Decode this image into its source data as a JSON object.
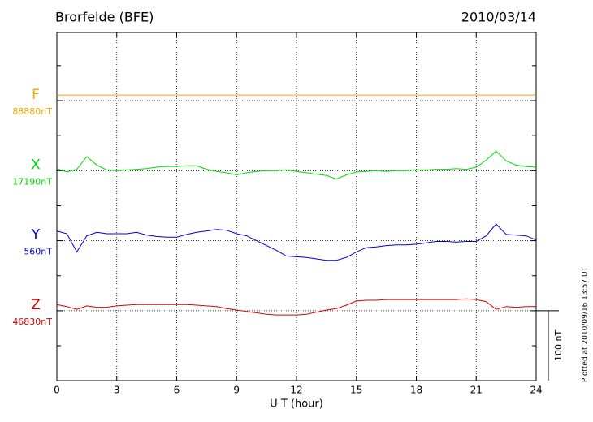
{
  "chart_data": {
    "type": "line",
    "title": "Brorfelde (BFE)",
    "date": "2010/03/14",
    "xlabel": "U T (hour)",
    "xlim": [
      0,
      24
    ],
    "xticks": [
      0,
      3,
      6,
      9,
      12,
      15,
      18,
      21,
      24
    ],
    "grid": true,
    "x": [
      0,
      0.5,
      1,
      1.5,
      2,
      2.5,
      3,
      3.5,
      4,
      4.5,
      5,
      5.5,
      6,
      6.5,
      7,
      7.5,
      8,
      8.5,
      9,
      9.5,
      10,
      10.5,
      11,
      11.5,
      12,
      12.5,
      13,
      13.5,
      14,
      14.5,
      15,
      15.5,
      16,
      16.5,
      17,
      17.5,
      18,
      18.5,
      19,
      19.5,
      20,
      20.5,
      21,
      21.5,
      22,
      22.5,
      23,
      23.5,
      24
    ],
    "series": [
      {
        "name": "F",
        "color": "#f0a800",
        "baseline_label": "88880nT",
        "values": [
          8,
          8,
          8,
          8,
          8,
          8,
          8,
          8,
          8,
          8,
          8,
          8,
          8,
          8,
          8,
          8,
          8,
          8,
          8,
          8,
          8,
          8,
          8,
          8,
          8,
          8,
          8,
          8,
          8,
          8,
          8,
          8,
          8,
          8,
          8,
          8,
          8,
          8,
          8,
          8,
          8,
          8,
          8,
          8,
          8,
          8,
          8,
          8,
          8
        ]
      },
      {
        "name": "X",
        "color": "#00dd00",
        "baseline_label": "17190nT",
        "values": [
          3,
          -2,
          2,
          20,
          8,
          1,
          0,
          1,
          2,
          3,
          5,
          6,
          6,
          7,
          7,
          2,
          -1,
          -3,
          -6,
          -3,
          -1,
          0,
          0,
          1,
          -1,
          -3,
          -5,
          -7,
          -12,
          -6,
          -2,
          -1,
          0,
          -1,
          0,
          0,
          1,
          1,
          2,
          2,
          3,
          2,
          5,
          15,
          28,
          14,
          8,
          6,
          5
        ]
      },
      {
        "name": "Y",
        "color": "#0000dd",
        "baseline_label": "560nT",
        "values": [
          14,
          10,
          -16,
          7,
          12,
          10,
          10,
          10,
          12,
          8,
          6,
          5,
          5,
          9,
          12,
          14,
          16,
          15,
          10,
          7,
          0,
          -7,
          -14,
          -22,
          -23,
          -24,
          -26,
          -28,
          -28,
          -24,
          -16,
          -10,
          -9,
          -7,
          -6,
          -6,
          -5,
          -3,
          -1,
          -1,
          -2,
          -1,
          -1,
          7,
          24,
          9,
          8,
          7,
          1
        ]
      },
      {
        "name": "Z",
        "color": "#dd0000",
        "baseline_label": "46830nT",
        "values": [
          9,
          6,
          2,
          7,
          5,
          5,
          7,
          8,
          9,
          9,
          9,
          9,
          9,
          9,
          8,
          7,
          6,
          3,
          1,
          -1,
          -3,
          -5,
          -6,
          -6,
          -6,
          -5,
          -2,
          1,
          3,
          8,
          14,
          15,
          15,
          16,
          16,
          16,
          16,
          16,
          16,
          16,
          16,
          17,
          16,
          13,
          2,
          6,
          5,
          6,
          6
        ]
      }
    ],
    "scale_bar": {
      "value": 100,
      "label": "100 nT"
    },
    "footnote": "Plotted at 2010/09/16 13:57 UT"
  }
}
